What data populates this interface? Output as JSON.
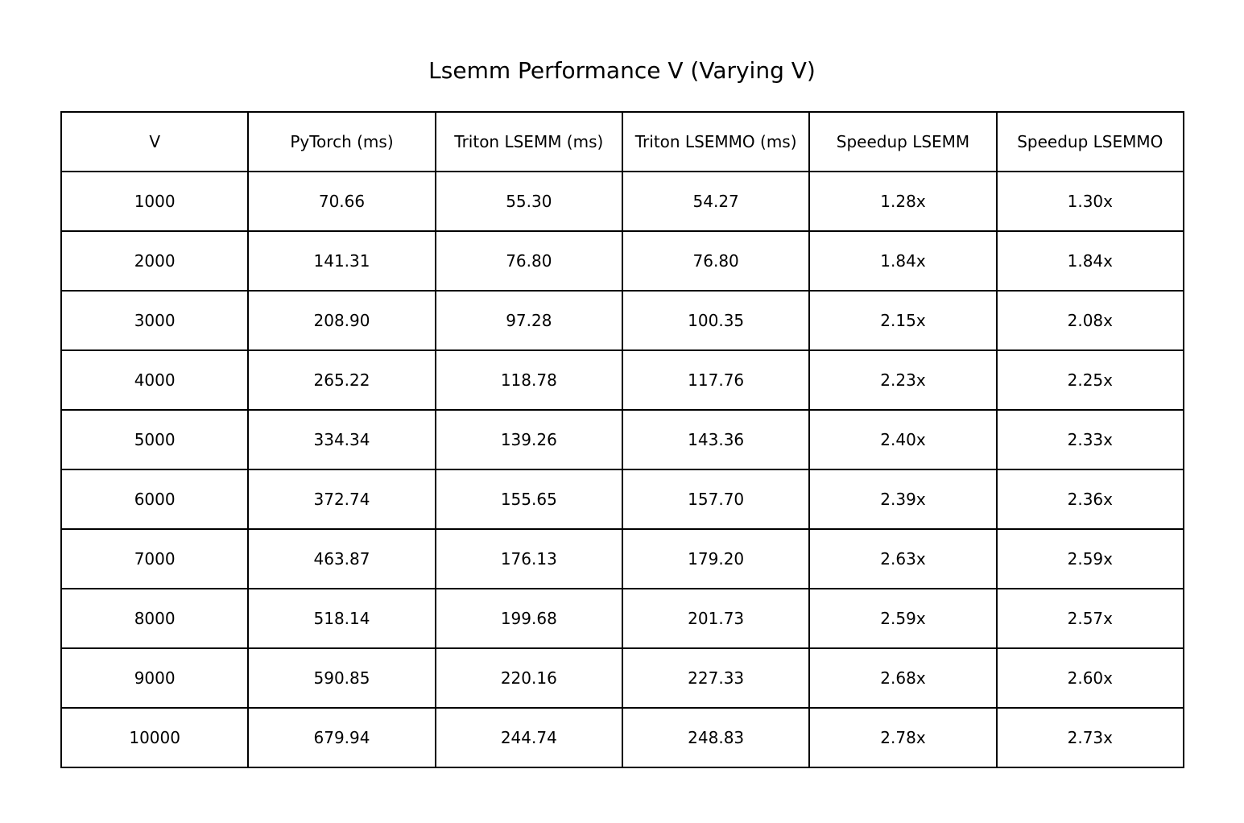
{
  "chart_data": {
    "type": "table",
    "title": "Lsemm Performance V (Varying V)",
    "columns": [
      "V",
      "PyTorch (ms)",
      "Triton LSEMM (ms)",
      "Triton LSEMMO (ms)",
      "Speedup LSEMM",
      "Speedup LSEMMO"
    ],
    "rows": [
      [
        "1000",
        "70.66",
        "55.30",
        "54.27",
        "1.28x",
        "1.30x"
      ],
      [
        "2000",
        "141.31",
        "76.80",
        "76.80",
        "1.84x",
        "1.84x"
      ],
      [
        "3000",
        "208.90",
        "97.28",
        "100.35",
        "2.15x",
        "2.08x"
      ],
      [
        "4000",
        "265.22",
        "118.78",
        "117.76",
        "2.23x",
        "2.25x"
      ],
      [
        "5000",
        "334.34",
        "139.26",
        "143.36",
        "2.40x",
        "2.33x"
      ],
      [
        "6000",
        "372.74",
        "155.65",
        "157.70",
        "2.39x",
        "2.36x"
      ],
      [
        "7000",
        "463.87",
        "176.13",
        "179.20",
        "2.63x",
        "2.59x"
      ],
      [
        "8000",
        "518.14",
        "199.68",
        "201.73",
        "2.59x",
        "2.57x"
      ],
      [
        "9000",
        "590.85",
        "220.16",
        "227.33",
        "2.68x",
        "2.60x"
      ],
      [
        "10000",
        "679.94",
        "244.74",
        "248.83",
        "2.78x",
        "2.73x"
      ]
    ]
  }
}
